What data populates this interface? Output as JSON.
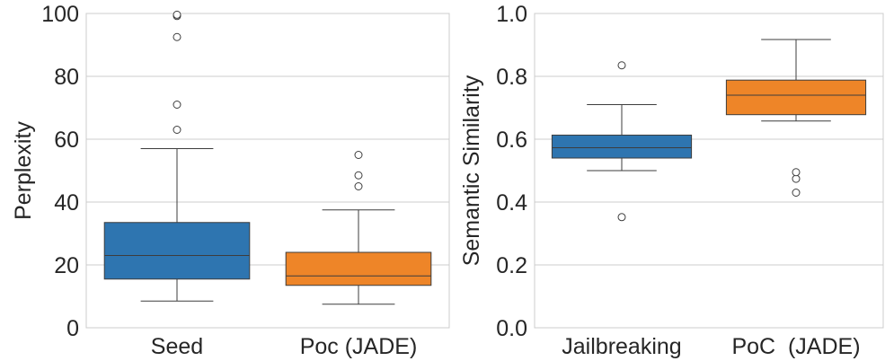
{
  "chart_data": [
    {
      "type": "box",
      "xlabel": "",
      "ylabel": "Perplexity",
      "ylim": [
        0,
        100
      ],
      "yticks": [
        0,
        20,
        40,
        60,
        80,
        100
      ],
      "grid": "horizontal",
      "categories": [
        "Seed",
        "Poc (JADE)"
      ],
      "boxes": [
        {
          "label": "Seed",
          "color": "#2e75b0",
          "whisker_low": 8.5,
          "q1": 15.5,
          "median": 23,
          "q3": 33.5,
          "whisker_high": 57,
          "outliers": [
            63,
            71,
            92.5,
            99.2,
            99.6
          ]
        },
        {
          "label": "Poc (JADE)",
          "color": "#ee8528",
          "whisker_low": 7.5,
          "q1": 13.5,
          "median": 16.5,
          "q3": 24,
          "whisker_high": 37.5,
          "outliers": [
            45,
            48.5,
            55
          ]
        }
      ]
    },
    {
      "type": "box",
      "xlabel": "",
      "ylabel": "Semantic Similarity",
      "ylim": [
        0,
        1
      ],
      "yticks": [
        0.0,
        0.2,
        0.4,
        0.6,
        0.8,
        1.0
      ],
      "grid": "horizontal",
      "categories": [
        "Jailbreaking",
        "PoC  (JADE)"
      ],
      "boxes": [
        {
          "label": "Jailbreaking",
          "color": "#2e75b0",
          "whisker_low": 0.5,
          "q1": 0.54,
          "median": 0.573,
          "q3": 0.613,
          "whisker_high": 0.71,
          "outliers": [
            0.352,
            0.835
          ]
        },
        {
          "label": "PoC  (JADE)",
          "color": "#ee8528",
          "whisker_low": 0.658,
          "q1": 0.678,
          "median": 0.74,
          "q3": 0.788,
          "whisker_high": 0.917,
          "outliers": [
            0.43,
            0.474,
            0.495
          ]
        }
      ]
    }
  ]
}
